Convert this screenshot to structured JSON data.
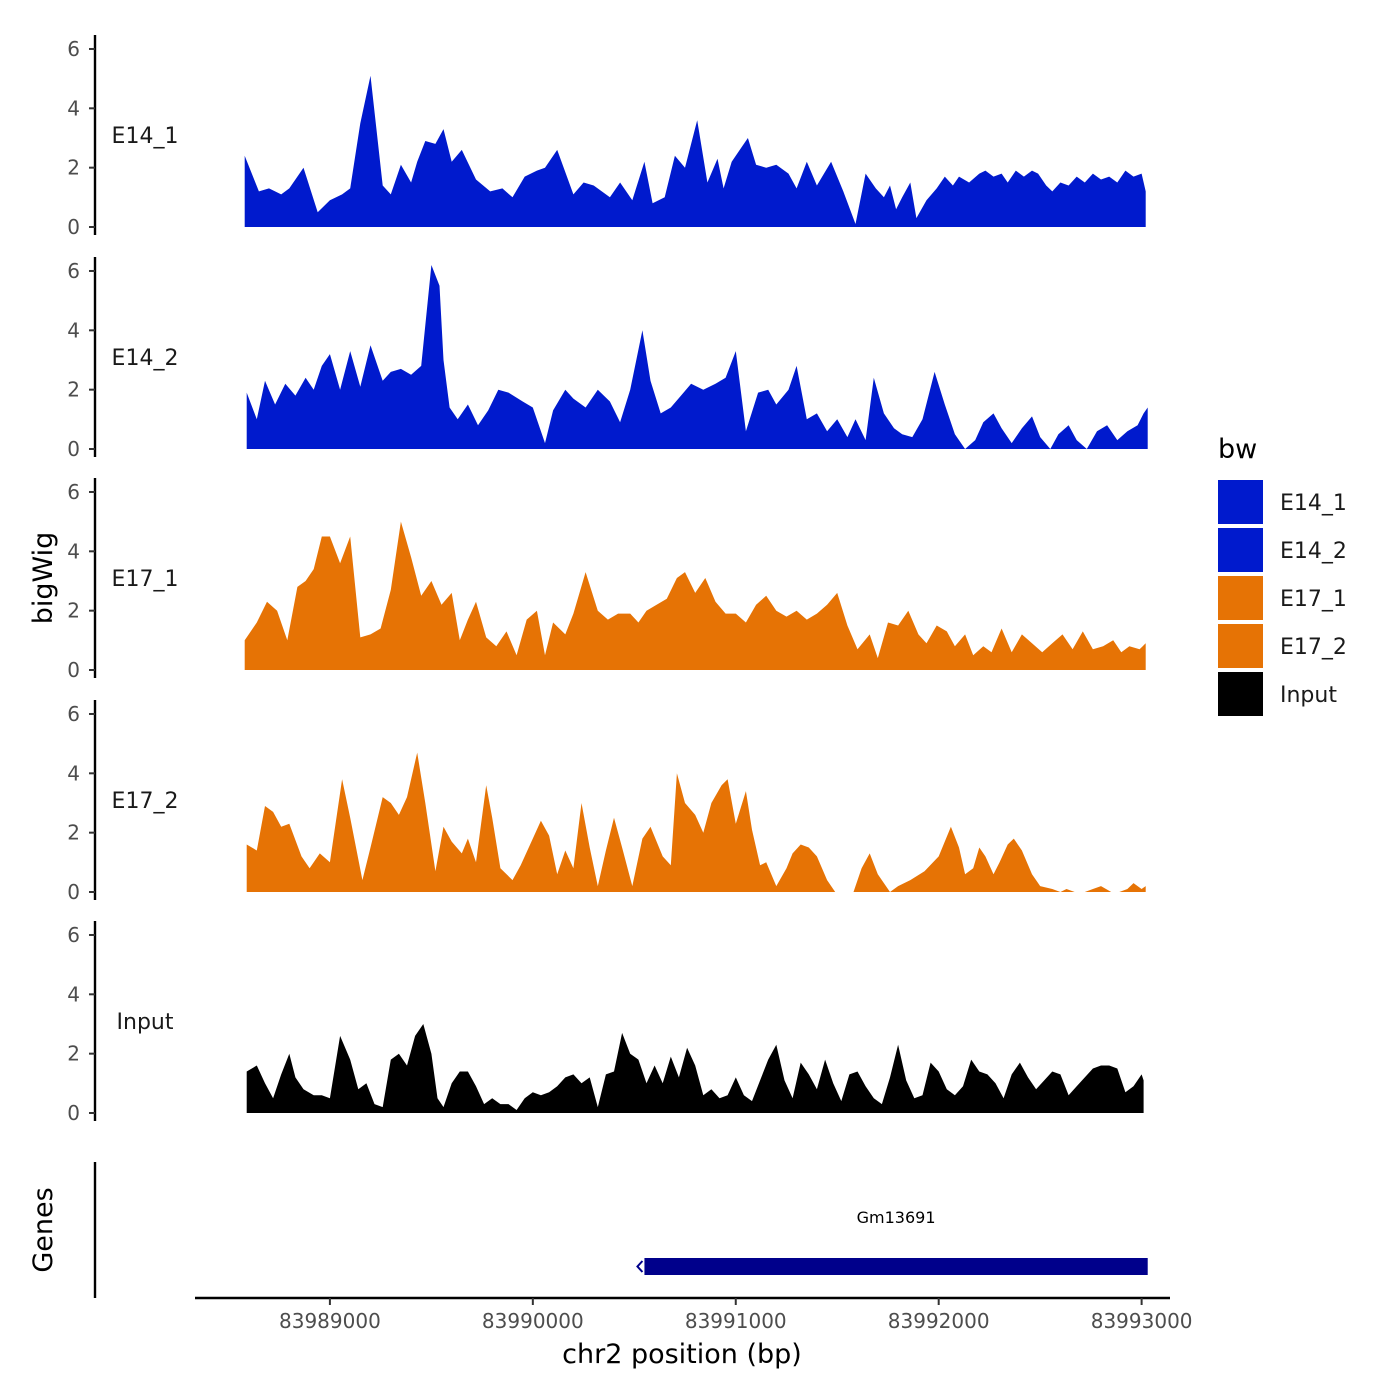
{
  "chart_data": {
    "type": "area",
    "title": "",
    "xlabel": "chr2 position (bp)",
    "ylabel": "bigWig",
    "genes_label": "Genes",
    "xlim": [
      83988350,
      83993130
    ],
    "ylim": [
      0,
      6.3
    ],
    "x_ticks": [
      83989000,
      83990000,
      83991000,
      83992000,
      83993000
    ],
    "x_tick_labels": [
      "83989000",
      "83990000",
      "83991000",
      "83992000",
      "83993000"
    ],
    "y_ticks": [
      0,
      2,
      4,
      6
    ],
    "y_tick_labels": [
      "0",
      "2",
      "4",
      "6"
    ],
    "legend": {
      "title": "bw",
      "entries": [
        {
          "label": "E14_1",
          "color": "#001ACD"
        },
        {
          "label": "E14_2",
          "color": "#001ACD"
        },
        {
          "label": "E17_1",
          "color": "#E67305"
        },
        {
          "label": "E17_2",
          "color": "#E67305"
        },
        {
          "label": "Input",
          "color": "#000000"
        }
      ]
    },
    "series": [
      {
        "name": "E14_1",
        "color": "#001ACD",
        "x": [
          83988580,
          83988650,
          83988700,
          83988760,
          83988800,
          83988870,
          83988940,
          83989000,
          83989060,
          83989100,
          83989150,
          83989200,
          83989260,
          83989300,
          83989350,
          83989400,
          83989430,
          83989470,
          83989520,
          83989560,
          83989600,
          83989650,
          83989720,
          83989790,
          83989850,
          83989900,
          83989960,
          83990020,
          83990060,
          83990120,
          83990200,
          83990250,
          83990300,
          83990380,
          83990430,
          83990490,
          83990550,
          83990590,
          83990650,
          83990700,
          83990750,
          83990810,
          83990860,
          83990910,
          83990940,
          83990980,
          83991030,
          83991060,
          83991100,
          83991150,
          83991200,
          83991260,
          83991300,
          83991350,
          83991400,
          83991470,
          83991530,
          83991590,
          83991640,
          83991690,
          83991730,
          83991760,
          83991790,
          83991820,
          83991860,
          83991890,
          83991940,
          83991990,
          83992030,
          83992070,
          83992100,
          83992150,
          83992200,
          83992230,
          83992270,
          83992310,
          83992340,
          83992380,
          83992420,
          83992460,
          83992490,
          83992530,
          83992560,
          83992600,
          83992640,
          83992680,
          83992720,
          83992760,
          83992800,
          83992840,
          83992880,
          83992920,
          83992960,
          83993000,
          83993020
        ],
        "values": [
          2.4,
          1.2,
          1.3,
          1.1,
          1.3,
          2.0,
          0.5,
          0.9,
          1.1,
          1.3,
          3.5,
          5.1,
          1.4,
          1.1,
          2.1,
          1.5,
          2.2,
          2.9,
          2.8,
          3.3,
          2.2,
          2.6,
          1.6,
          1.2,
          1.3,
          1.0,
          1.7,
          1.9,
          2.0,
          2.6,
          1.1,
          1.5,
          1.4,
          1.0,
          1.5,
          0.9,
          2.2,
          0.8,
          1.0,
          2.4,
          2.0,
          3.6,
          1.5,
          2.3,
          1.3,
          2.2,
          2.7,
          3.0,
          2.1,
          2.0,
          2.1,
          1.8,
          1.3,
          2.2,
          1.4,
          2.2,
          1.2,
          0.1,
          1.8,
          1.3,
          1.0,
          1.4,
          0.6,
          1.0,
          1.5,
          0.3,
          0.9,
          1.3,
          1.7,
          1.4,
          1.7,
          1.5,
          1.8,
          1.9,
          1.7,
          1.8,
          1.5,
          1.9,
          1.7,
          1.9,
          1.8,
          1.4,
          1.2,
          1.5,
          1.4,
          1.7,
          1.5,
          1.8,
          1.6,
          1.7,
          1.5,
          1.9,
          1.7,
          1.8,
          1.2
        ]
      },
      {
        "name": "E14_2",
        "color": "#001ACD",
        "x": [
          83988590,
          83988640,
          83988680,
          83988730,
          83988780,
          83988830,
          83988880,
          83988920,
          83988960,
          83989000,
          83989050,
          83989100,
          83989150,
          83989200,
          83989260,
          83989300,
          83989350,
          83989400,
          83989450,
          83989500,
          83989540,
          83989560,
          83989590,
          83989630,
          83989680,
          83989730,
          83989780,
          83989830,
          83989880,
          83989950,
          83990000,
          83990060,
          83990100,
          83990160,
          83990200,
          83990260,
          83990320,
          83990380,
          83990430,
          83990480,
          83990540,
          83990580,
          83990630,
          83990680,
          83990730,
          83990780,
          83990840,
          83990900,
          83990950,
          83991000,
          83991050,
          83991110,
          83991160,
          83991200,
          83991260,
          83991300,
          83991350,
          83991400,
          83991450,
          83991500,
          83991550,
          83991590,
          83991640,
          83991680,
          83991730,
          83991780,
          83991820,
          83991870,
          83991920,
          83991980,
          83992030,
          83992080,
          83992130,
          83992180,
          83992220,
          83992270,
          83992310,
          83992360,
          83992410,
          83992460,
          83992500,
          83992550,
          83992590,
          83992640,
          83992680,
          83992730,
          83992780,
          83992830,
          83992880,
          83992930,
          83992980,
          83993010,
          83993030
        ],
        "values": [
          1.9,
          1.0,
          2.3,
          1.5,
          2.2,
          1.8,
          2.4,
          2.0,
          2.8,
          3.2,
          2.0,
          3.3,
          2.1,
          3.5,
          2.3,
          2.6,
          2.7,
          2.5,
          2.8,
          6.2,
          5.5,
          3.0,
          1.4,
          1.0,
          1.5,
          0.8,
          1.3,
          2.0,
          1.9,
          1.6,
          1.4,
          0.2,
          1.3,
          2.0,
          1.7,
          1.4,
          2.0,
          1.6,
          0.9,
          2.0,
          4.0,
          2.3,
          1.2,
          1.4,
          1.8,
          2.2,
          2.0,
          2.2,
          2.4,
          3.3,
          0.6,
          1.9,
          2.0,
          1.5,
          2.0,
          2.8,
          1.0,
          1.2,
          0.6,
          1.0,
          0.4,
          1.0,
          0.3,
          2.4,
          1.2,
          0.7,
          0.5,
          0.4,
          1.0,
          2.6,
          1.5,
          0.5,
          0.0,
          0.3,
          0.9,
          1.2,
          0.7,
          0.2,
          0.7,
          1.1,
          0.4,
          0.0,
          0.5,
          0.8,
          0.3,
          0.0,
          0.6,
          0.8,
          0.3,
          0.6,
          0.8,
          1.2,
          1.4
        ]
      },
      {
        "name": "E17_1",
        "color": "#E67305",
        "x": [
          83988580,
          83988640,
          83988690,
          83988740,
          83988790,
          83988840,
          83988880,
          83988920,
          83988960,
          83989000,
          83989050,
          83989100,
          83989150,
          83989200,
          83989250,
          83989300,
          83989350,
          83989400,
          83989450,
          83989500,
          83989550,
          83989600,
          83989640,
          83989680,
          83989720,
          83989770,
          83989820,
          83989870,
          83989920,
          83989970,
          83990020,
          83990060,
          83990100,
          83990160,
          83990200,
          83990260,
          83990320,
          83990370,
          83990420,
          83990480,
          83990520,
          83990560,
          83990610,
          83990660,
          83990710,
          83990750,
          83990800,
          83990850,
          83990900,
          83990950,
          83991000,
          83991050,
          83991100,
          83991150,
          83991200,
          83991250,
          83991300,
          83991350,
          83991400,
          83991450,
          83991500,
          83991550,
          83991600,
          83991660,
          83991700,
          83991750,
          83991800,
          83991850,
          83991900,
          83991940,
          83991990,
          83992040,
          83992080,
          83992130,
          83992170,
          83992220,
          83992260,
          83992310,
          83992360,
          83992410,
          83992460,
          83992510,
          83992560,
          83992610,
          83992660,
          83992710,
          83992760,
          83992810,
          83992860,
          83992900,
          83992940,
          83992990,
          83993020
        ],
        "values": [
          1.0,
          1.6,
          2.3,
          2.0,
          1.0,
          2.8,
          3.0,
          3.4,
          4.5,
          4.5,
          3.6,
          4.5,
          1.1,
          1.2,
          1.4,
          2.7,
          5.0,
          3.8,
          2.5,
          3.0,
          2.2,
          2.6,
          1.0,
          1.7,
          2.3,
          1.1,
          0.8,
          1.3,
          0.5,
          1.7,
          2.0,
          0.5,
          1.6,
          1.2,
          1.9,
          3.3,
          2.0,
          1.7,
          1.9,
          1.9,
          1.6,
          2.0,
          2.2,
          2.4,
          3.1,
          3.3,
          2.6,
          3.1,
          2.3,
          1.9,
          1.9,
          1.6,
          2.2,
          2.5,
          2.0,
          1.8,
          2.0,
          1.7,
          1.9,
          2.2,
          2.6,
          1.5,
          0.7,
          1.2,
          0.4,
          1.6,
          1.5,
          2.0,
          1.2,
          0.9,
          1.5,
          1.3,
          0.8,
          1.2,
          0.5,
          0.8,
          0.6,
          1.4,
          0.6,
          1.2,
          0.9,
          0.6,
          0.9,
          1.2,
          0.7,
          1.3,
          0.7,
          0.8,
          1.0,
          0.6,
          0.8,
          0.7,
          0.9
        ]
      },
      {
        "name": "E17_2",
        "color": "#E67305",
        "x": [
          83988590,
          83988640,
          83988680,
          83988720,
          83988760,
          83988800,
          83988860,
          83988900,
          83988950,
          83989000,
          83989060,
          83989100,
          83989160,
          83989200,
          83989260,
          83989300,
          83989340,
          83989380,
          83989430,
          83989470,
          83989520,
          83989560,
          83989600,
          83989650,
          83989680,
          83989720,
          83989770,
          83989800,
          83989840,
          83989900,
          83989940,
          83990000,
          83990040,
          83990080,
          83990120,
          83990160,
          83990200,
          83990240,
          83990280,
          83990320,
          83990360,
          83990400,
          83990440,
          83990490,
          83990540,
          83990580,
          83990640,
          83990680,
          83990710,
          83990750,
          83990800,
          83990840,
          83990880,
          83990930,
          83990960,
          83991000,
          83991050,
          83991080,
          83991120,
          83991150,
          83991200,
          83991250,
          83991280,
          83991320,
          83991360,
          83991400,
          83991450,
          83991490,
          83991530,
          83991580,
          83991620,
          83991660,
          83991700,
          83991760,
          83991800,
          83991860,
          83991930,
          83992000,
          83992060,
          83992100,
          83992130,
          83992170,
          83992200,
          83992230,
          83992270,
          83992300,
          83992340,
          83992370,
          83992410,
          83992460,
          83992500,
          83992560,
          83992600,
          83992630,
          83992670,
          83992720,
          83992760,
          83992800,
          83992850,
          83992890,
          83992930,
          83992960,
          83993000,
          83993020
        ],
        "values": [
          1.6,
          1.4,
          2.9,
          2.7,
          2.2,
          2.3,
          1.2,
          0.8,
          1.3,
          1.0,
          3.8,
          2.5,
          0.4,
          1.5,
          3.2,
          3.0,
          2.6,
          3.2,
          4.7,
          3.0,
          0.7,
          2.2,
          1.7,
          1.3,
          1.8,
          1.0,
          3.6,
          2.5,
          0.8,
          0.4,
          0.9,
          1.8,
          2.4,
          1.9,
          0.6,
          1.4,
          0.8,
          3.0,
          1.5,
          0.2,
          1.4,
          2.5,
          1.5,
          0.2,
          1.8,
          2.2,
          1.2,
          0.9,
          4.0,
          3.0,
          2.6,
          2.0,
          3.0,
          3.6,
          3.8,
          2.3,
          3.4,
          2.1,
          0.9,
          1.0,
          0.2,
          0.8,
          1.3,
          1.6,
          1.5,
          1.2,
          0.4,
          0.0,
          0.0,
          0.0,
          0.8,
          1.3,
          0.6,
          0.0,
          0.2,
          0.4,
          0.7,
          1.2,
          2.2,
          1.5,
          0.6,
          0.8,
          1.5,
          1.2,
          0.6,
          1.0,
          1.6,
          1.8,
          1.4,
          0.6,
          0.2,
          0.1,
          0.0,
          0.1,
          0.0,
          0.0,
          0.1,
          0.2,
          0.0,
          0.0,
          0.1,
          0.3,
          0.1,
          0.2
        ]
      },
      {
        "name": "Input",
        "color": "#000000",
        "x": [
          83988590,
          83988640,
          83988680,
          83988720,
          83988760,
          83988800,
          83988830,
          83988870,
          83988920,
          83988960,
          83989000,
          83989050,
          83989100,
          83989140,
          83989180,
          83989220,
          83989260,
          83989300,
          83989340,
          83989380,
          83989420,
          83989460,
          83989500,
          83989530,
          83989560,
          83989600,
          83989640,
          83989680,
          83989720,
          83989760,
          83989800,
          83989840,
          83989880,
          83989920,
          83989960,
          83990000,
          83990040,
          83990080,
          83990120,
          83990160,
          83990200,
          83990240,
          83990280,
          83990320,
          83990360,
          83990400,
          83990440,
          83990480,
          83990520,
          83990560,
          83990600,
          83990640,
          83990680,
          83990720,
          83990760,
          83990800,
          83990840,
          83990880,
          83990920,
          83990960,
          83991000,
          83991040,
          83991080,
          83991120,
          83991160,
          83991200,
          83991240,
          83991280,
          83991320,
          83991360,
          83991400,
          83991440,
          83991480,
          83991520,
          83991560,
          83991600,
          83991640,
          83991680,
          83991720,
          83991760,
          83991800,
          83991840,
          83991880,
          83991920,
          83991960,
          83992000,
          83992040,
          83992080,
          83992120,
          83992160,
          83992200,
          83992240,
          83992280,
          83992320,
          83992360,
          83992400,
          83992440,
          83992480,
          83992520,
          83992560,
          83992600,
          83992640,
          83992680,
          83992720,
          83992760,
          83992800,
          83992840,
          83992880,
          83992920,
          83992960,
          83993000,
          83993010
        ],
        "values": [
          1.4,
          1.6,
          1.0,
          0.5,
          1.3,
          2.0,
          1.2,
          0.8,
          0.6,
          0.6,
          0.5,
          2.6,
          1.8,
          0.8,
          1.0,
          0.3,
          0.2,
          1.8,
          2.0,
          1.6,
          2.6,
          3.0,
          2.0,
          0.5,
          0.2,
          1.0,
          1.4,
          1.4,
          0.9,
          0.3,
          0.5,
          0.3,
          0.3,
          0.1,
          0.5,
          0.7,
          0.6,
          0.7,
          0.9,
          1.2,
          1.3,
          1.0,
          1.2,
          0.2,
          1.3,
          1.4,
          2.7,
          2.0,
          1.8,
          1.0,
          1.6,
          1.0,
          1.9,
          1.2,
          2.2,
          1.6,
          0.6,
          0.8,
          0.5,
          0.6,
          1.2,
          0.6,
          0.4,
          1.1,
          1.8,
          2.3,
          1.1,
          0.5,
          1.7,
          1.3,
          0.8,
          1.8,
          1.0,
          0.4,
          1.3,
          1.4,
          0.9,
          0.5,
          0.3,
          1.2,
          2.3,
          1.1,
          0.5,
          0.6,
          1.7,
          1.4,
          0.8,
          0.6,
          0.9,
          1.8,
          1.4,
          1.3,
          1.0,
          0.5,
          1.3,
          1.7,
          1.2,
          0.8,
          1.1,
          1.4,
          1.3,
          0.6,
          0.9,
          1.2,
          1.5,
          1.6,
          1.6,
          1.5,
          0.7,
          0.9,
          1.3,
          1.1
        ]
      }
    ],
    "genes": [
      {
        "name": "Gm13691",
        "start": 83990550,
        "end": 83993030,
        "strand": "-",
        "color": "#00008B"
      }
    ]
  }
}
